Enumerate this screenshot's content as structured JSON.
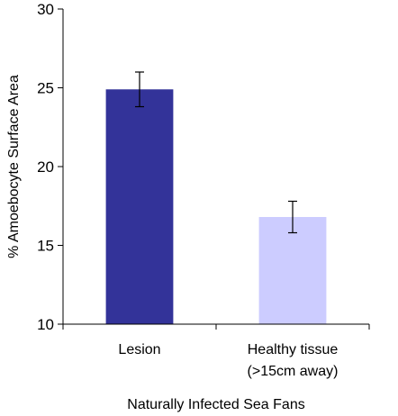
{
  "chart_data": {
    "type": "bar",
    "categories": [
      "Lesion",
      "Healthy tissue"
    ],
    "category_sublabels": [
      "",
      "(>15cm away)"
    ],
    "values": [
      24.9,
      16.8
    ],
    "errors": [
      1.1,
      1.0
    ],
    "colors": [
      "#333399",
      "#ccccff"
    ],
    "title": "",
    "xlabel": "Naturally Infected Sea Fans",
    "ylabel": "% Amoebocyte Surface Area",
    "ylim": [
      10,
      30
    ],
    "yticks": [
      10,
      15,
      20,
      25,
      30
    ],
    "ytick_labels": [
      "10",
      "15",
      "20",
      "25",
      "30"
    ],
    "grid": false,
    "legend": "none"
  }
}
